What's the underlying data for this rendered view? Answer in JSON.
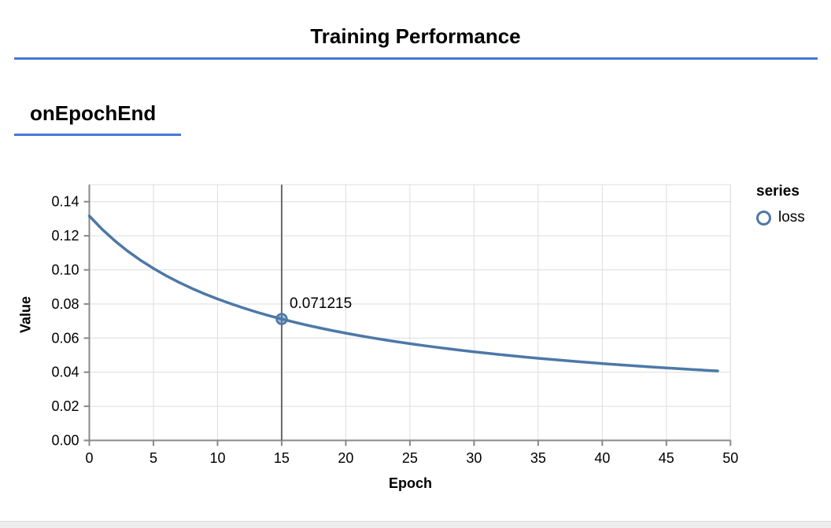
{
  "page": {
    "title": "Training Performance",
    "section_title": "onEpochEnd",
    "accent_color": "#4577d8"
  },
  "chart_data": {
    "type": "line",
    "title": "",
    "xlabel": "Epoch",
    "ylabel": "Value",
    "xlim": [
      0,
      50
    ],
    "ylim": [
      0,
      0.15
    ],
    "x_ticks": [
      0,
      5,
      10,
      15,
      20,
      25,
      30,
      35,
      40,
      45,
      50
    ],
    "y_ticks": [
      "0.00",
      "0.02",
      "0.04",
      "0.06",
      "0.08",
      "0.10",
      "0.12",
      "0.14"
    ],
    "grid": true,
    "x": [
      0,
      1,
      2,
      3,
      4,
      5,
      6,
      7,
      8,
      9,
      10,
      11,
      12,
      13,
      14,
      15,
      16,
      17,
      18,
      19,
      20,
      21,
      22,
      23,
      24,
      25,
      26,
      27,
      28,
      29,
      30,
      31,
      32,
      33,
      34,
      35,
      36,
      37,
      38,
      39,
      40,
      41,
      42,
      43,
      44,
      45,
      46,
      47,
      48,
      49
    ],
    "series": [
      {
        "name": "loss",
        "color": "#4c78a8",
        "values": [
          0.1316,
          0.123813,
          0.117,
          0.110988,
          0.105644,
          0.100863,
          0.09656,
          0.092667,
          0.089127,
          0.085896,
          0.082933,
          0.080208,
          0.077692,
          0.075363,
          0.0732,
          0.071215,
          0.069307,
          0.067548,
          0.0659,
          0.064352,
          0.062894,
          0.06152,
          0.060222,
          0.058995,
          0.057832,
          0.056728,
          0.05568,
          0.054683,
          0.053733,
          0.052828,
          0.051964,
          0.051138,
          0.050348,
          0.049591,
          0.048867,
          0.048171,
          0.047504,
          0.046863,
          0.046246,
          0.045653,
          0.045081,
          0.044531,
          0.044,
          0.043488,
          0.042993,
          0.042515,
          0.042053,
          0.041607,
          0.041174,
          0.040756
        ]
      }
    ],
    "highlight": {
      "x": 15,
      "value": 0.071215,
      "label": "0.071215"
    },
    "legend": {
      "position": "right",
      "title": "series",
      "items": [
        {
          "label": "loss",
          "marker": "circle-outline",
          "color": "#4c78a8"
        }
      ]
    },
    "colors": {
      "grid": "#dddddd",
      "axis": "#888888",
      "rule": "#696969",
      "view_border": "#dddddd",
      "label": "#000000"
    }
  }
}
